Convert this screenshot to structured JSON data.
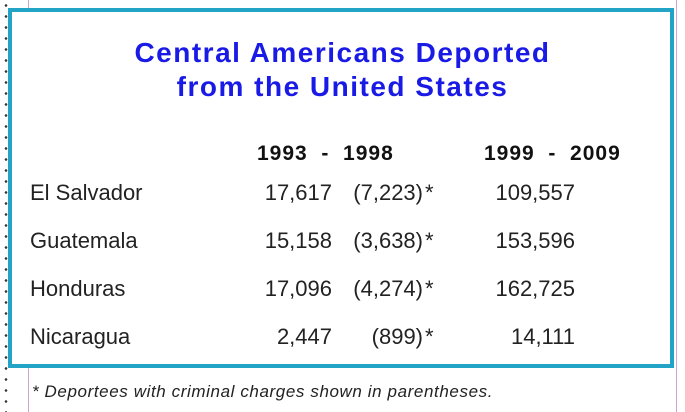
{
  "title_line1": "Central Americans Deported",
  "title_line2": "from the United States",
  "columns": [
    "1993  -  1998",
    "1999  -  2009"
  ],
  "rows": [
    {
      "country": "El Salvador",
      "total_1993_1998": "17,617",
      "criminal_1993_1998": "(7,223)",
      "marker": "*",
      "total_1999_2009": "109,557"
    },
    {
      "country": "Guatemala",
      "total_1993_1998": "15,158",
      "criminal_1993_1998": "(3,638)",
      "marker": "*",
      "total_1999_2009": "153,596"
    },
    {
      "country": "Honduras",
      "total_1993_1998": "17,096",
      "criminal_1993_1998": "(4,274)",
      "marker": "*",
      "total_1999_2009": "162,725"
    },
    {
      "country": "Nicaragua",
      "total_1993_1998": "2,447",
      "criminal_1993_1998": "(899)",
      "marker": "*",
      "total_1999_2009": "14,111"
    }
  ],
  "footnote": "* Deportees with criminal charges shown in parentheses.",
  "colors": {
    "title": "#1a1ae6",
    "frame": "#23a4c6"
  }
}
